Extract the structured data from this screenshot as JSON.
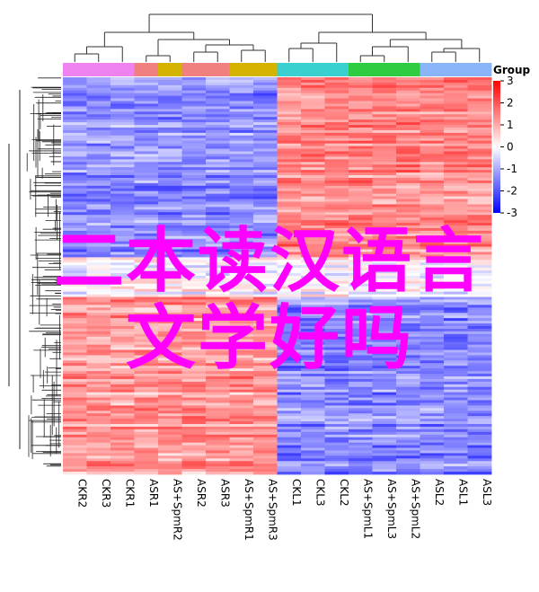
{
  "chart_data": {
    "type": "heatmap",
    "columns": [
      "CKR2",
      "CKR3",
      "CKR1",
      "ASR1",
      "AS+SpmR2",
      "ASR2",
      "ASR3",
      "AS+SpmR1",
      "AS+SpmR3",
      "CKL1",
      "CKL3",
      "CKL2",
      "AS+SpmL1",
      "AS+SpmL3",
      "AS+SpmL2",
      "ASL2",
      "ASL1",
      "ASL3"
    ],
    "column_groups": [
      "#ee82ee",
      "#ee82ee",
      "#ee82ee",
      "#f08080",
      "#d4b400",
      "#f08080",
      "#f08080",
      "#d4b400",
      "#d4b400",
      "#3ad0cf",
      "#3ad0cf",
      "#3ad0cf",
      "#2ecc40",
      "#2ecc40",
      "#2ecc40",
      "#8ab4f8",
      "#8ab4f8",
      "#8ab4f8"
    ],
    "row_pattern": [
      {
        "from": 0.0,
        "to": 0.45,
        "left": -1.3,
        "right": 1.4
      },
      {
        "from": 0.45,
        "to": 0.55,
        "left": 0.0,
        "right": 0.0
      },
      {
        "from": 0.55,
        "to": 1.0,
        "left": 1.2,
        "right": -1.4
      }
    ],
    "legend": {
      "title": "Group",
      "ticks": [
        "3",
        "2",
        "1",
        "0",
        "-1",
        "-2",
        "-3"
      ],
      "range": [
        -3,
        3
      ],
      "colors": {
        "low": "#0000ff",
        "mid": "#ffffff",
        "high": "#ff0000"
      }
    }
  },
  "overlay": {
    "line1": "二本读汉语言",
    "line2": "文学好吗"
  }
}
